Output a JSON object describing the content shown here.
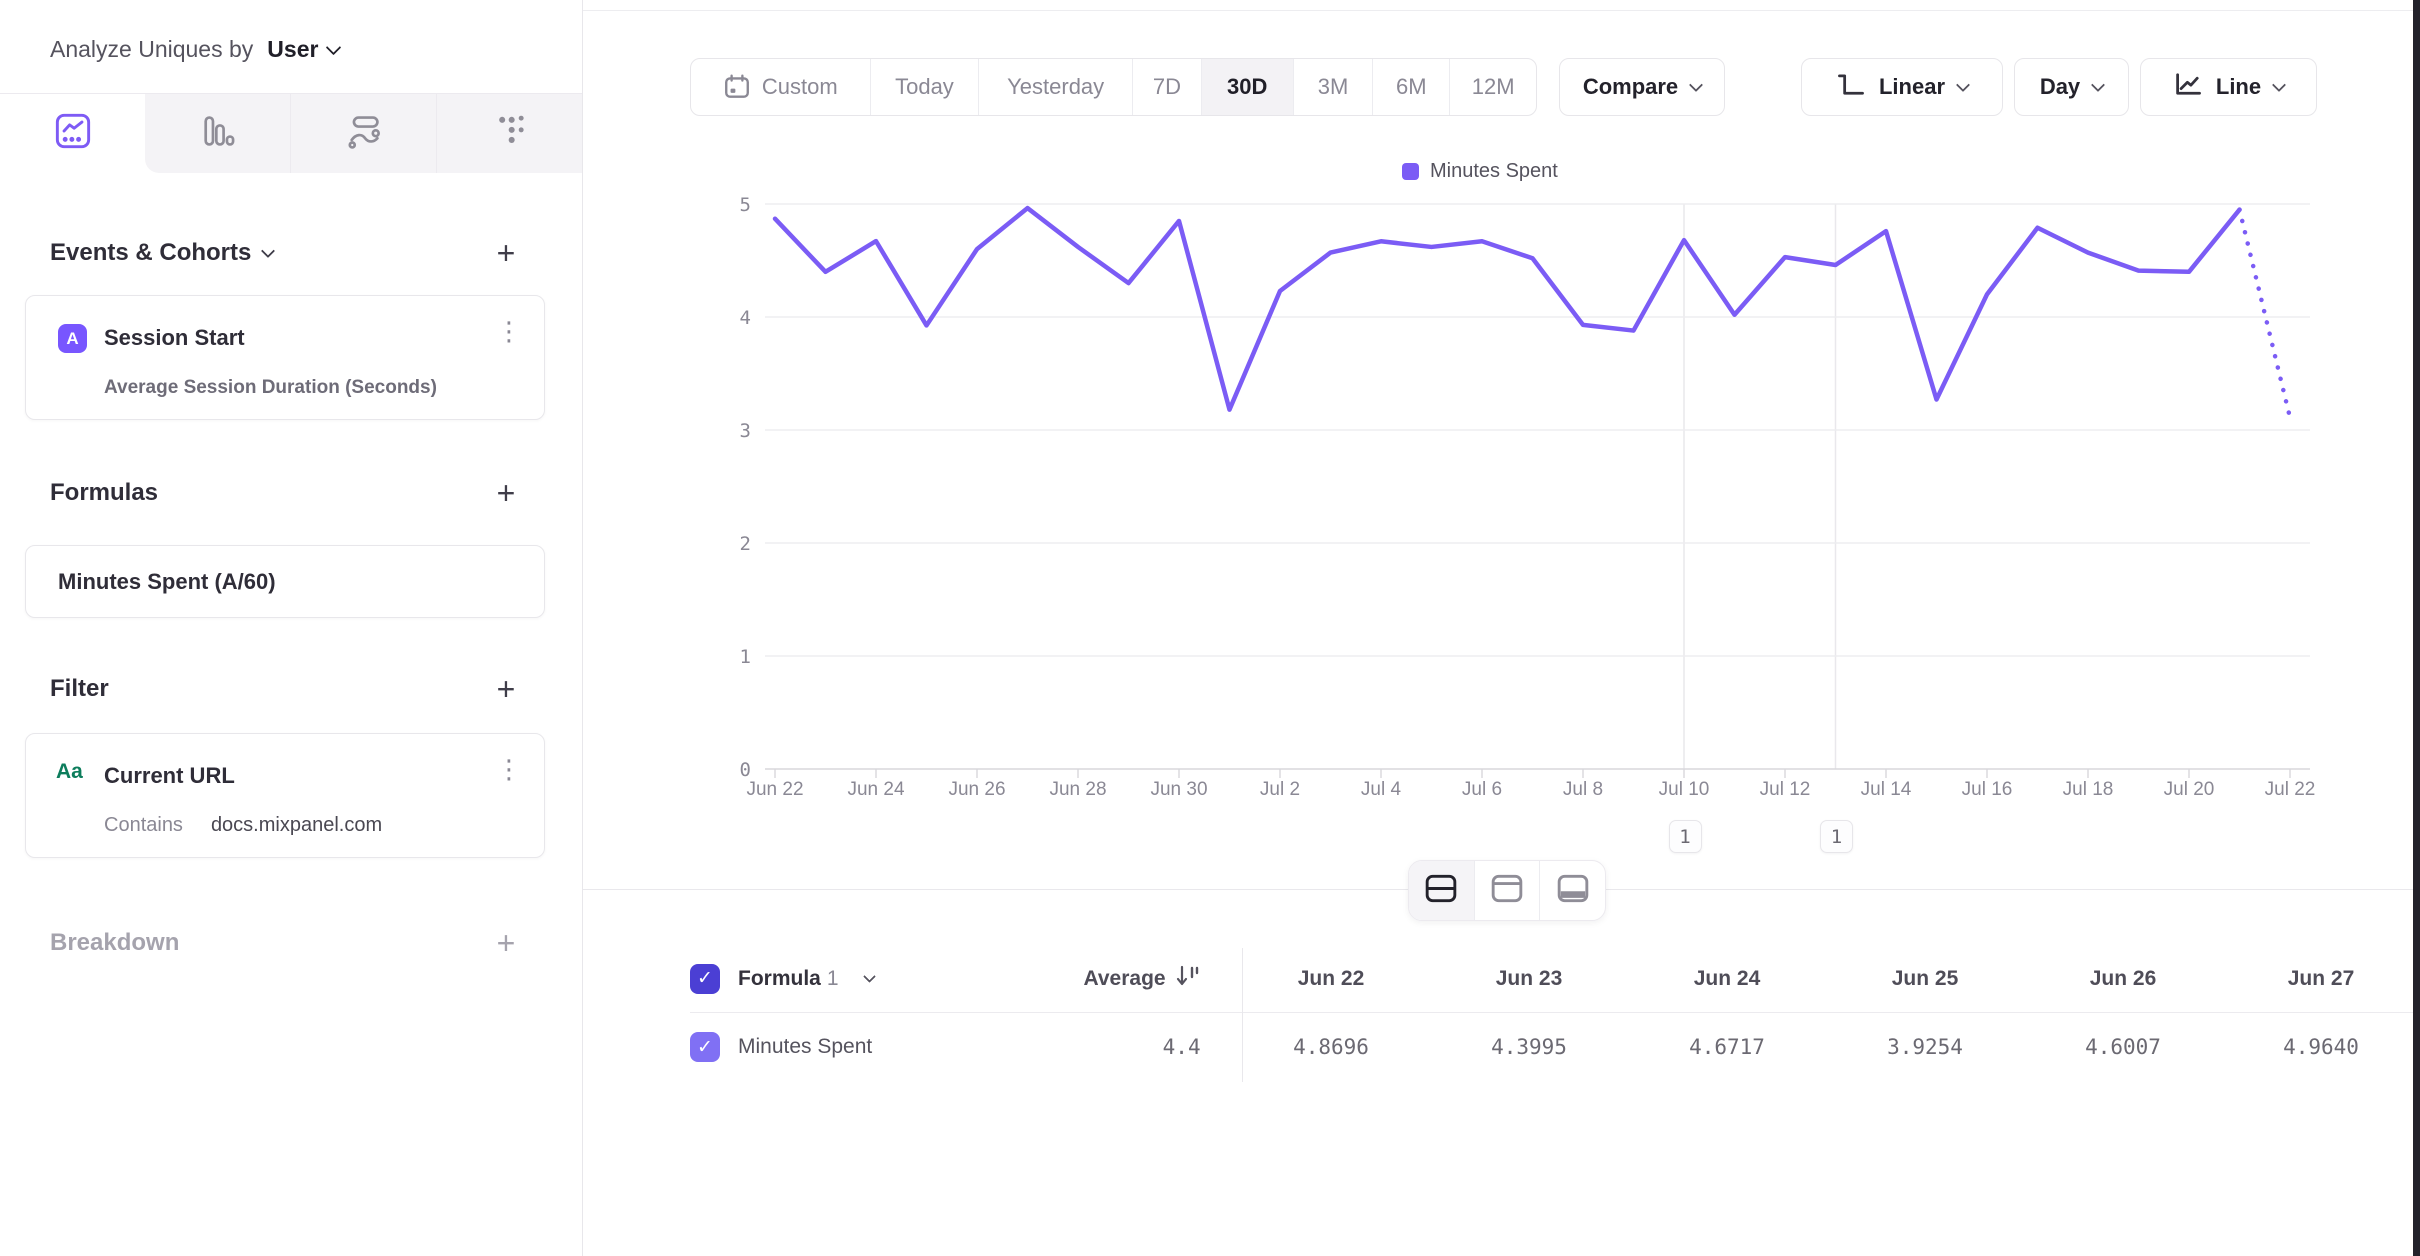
{
  "sidebar": {
    "analyze_row": {
      "label": "Analyze Uniques by",
      "value": "User"
    },
    "tabs": [
      {
        "name": "insights",
        "active": true
      },
      {
        "name": "bar",
        "active": false
      },
      {
        "name": "flows",
        "active": false
      },
      {
        "name": "retention",
        "active": false
      }
    ],
    "events_section": {
      "header": "Events & Cohorts",
      "add_icon": "+"
    },
    "event_card": {
      "badge": "A",
      "title": "Session Start",
      "menu_icon": "⋮",
      "subtitle": "Average Session Duration (Seconds)"
    },
    "formulas_section": {
      "header": "Formulas",
      "add_icon": "+"
    },
    "formula_card": {
      "title": "Minutes Spent (A/60)"
    },
    "filter_section": {
      "header": "Filter",
      "add_icon": "+"
    },
    "filter_card": {
      "icon_label": "Aa",
      "title": "Current URL",
      "menu_icon": "⋮",
      "operator": "Contains",
      "value": "docs.mixpanel.com"
    },
    "breakdown_section": {
      "header": "Breakdown",
      "add_icon": "+"
    }
  },
  "toolbar": {
    "date_ranges": [
      "Custom",
      "Today",
      "Yesterday",
      "7D",
      "30D",
      "3M",
      "6M",
      "12M"
    ],
    "selected_range": "30D",
    "compare": "Compare",
    "scale": "Linear",
    "interval": "Day",
    "chart_type": "Line"
  },
  "legend": {
    "series_name": "Minutes Spent",
    "color": "#7b5cf5"
  },
  "chart_data": {
    "type": "line",
    "x": [
      "Jun 22",
      "Jun 23",
      "Jun 24",
      "Jun 25",
      "Jun 26",
      "Jun 27",
      "Jun 28",
      "Jun 29",
      "Jun 30",
      "Jul 1",
      "Jul 2",
      "Jul 3",
      "Jul 4",
      "Jul 5",
      "Jul 6",
      "Jul 7",
      "Jul 8",
      "Jul 9",
      "Jul 10",
      "Jul 11",
      "Jul 12",
      "Jul 13",
      "Jul 14",
      "Jul 15",
      "Jul 16",
      "Jul 17",
      "Jul 18",
      "Jul 19",
      "Jul 20",
      "Jul 21",
      "Jul 22"
    ],
    "series": [
      {
        "name": "Minutes Spent",
        "color": "#7b5cf5",
        "values": [
          4.8696,
          4.3995,
          4.6717,
          3.9254,
          4.6007,
          4.964,
          4.62,
          4.3,
          4.85,
          3.18,
          4.23,
          4.57,
          4.67,
          4.62,
          4.67,
          4.52,
          3.93,
          3.88,
          4.68,
          4.02,
          4.53,
          4.46,
          4.76,
          3.27,
          4.2,
          4.79,
          4.57,
          4.41,
          4.4,
          4.95,
          3.11
        ],
        "dashed_tail_points": 1
      }
    ],
    "ylim": [
      0,
      5
    ],
    "yticks": [
      0,
      1,
      2,
      3,
      4,
      5
    ],
    "x_tick_interval": 2,
    "grid": "horizontal",
    "legend_position": "top-center"
  },
  "annotations": [
    {
      "label": "1",
      "x": "Jul 10"
    },
    {
      "label": "1",
      "x": "Jul 13"
    }
  ],
  "layout_toggle": {
    "options": [
      "split-view",
      "chart-only",
      "table-only"
    ],
    "active": "split-view"
  },
  "table": {
    "header": {
      "group_label": "Formula",
      "group_number": "1",
      "average_label": "Average",
      "date_columns": [
        "Jun 22",
        "Jun 23",
        "Jun 24",
        "Jun 25",
        "Jun 26",
        "Jun 27"
      ]
    },
    "rows": [
      {
        "name": "Minutes Spent",
        "average": "4.4",
        "checked": true,
        "values": [
          "4.8696",
          "4.3995",
          "4.6717",
          "3.9254",
          "4.6007",
          "4.9640"
        ]
      }
    ]
  }
}
